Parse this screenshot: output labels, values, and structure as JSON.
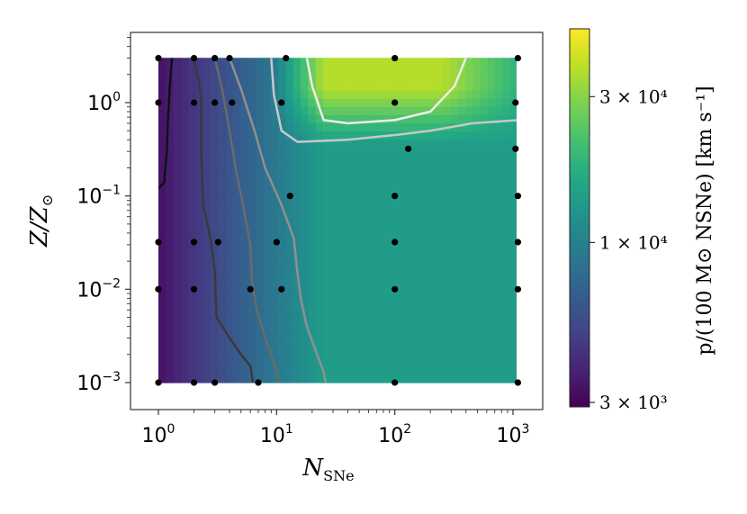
{
  "chart_data": {
    "type": "heatmap",
    "xlabel": "N",
    "xlabel_sub": "SNe",
    "ylabel": "Z/Z",
    "ylabel_sub": "⊙",
    "x_scale": "log",
    "y_scale": "log",
    "xlim": [
      0.62,
      1800
    ],
    "ylim": [
      0.00058,
      5.7
    ],
    "x_ticks": [
      {
        "value": 1,
        "base": "10",
        "exp": "0"
      },
      {
        "value": 10,
        "base": "10",
        "exp": "1"
      },
      {
        "value": 100,
        "base": "10",
        "exp": "2"
      },
      {
        "value": 1000,
        "base": "10",
        "exp": "3"
      }
    ],
    "y_ticks": [
      {
        "value": 0.001,
        "base": "10",
        "exp": "−3"
      },
      {
        "value": 0.01,
        "base": "10",
        "exp": "−2"
      },
      {
        "value": 0.1,
        "base": "10",
        "exp": "−1"
      },
      {
        "value": 1,
        "base": "10",
        "exp": "0"
      }
    ],
    "colormap": "viridis",
    "colorbar": {
      "scale": "log",
      "range": [
        2900,
        50000
      ],
      "ticks": [
        {
          "value": 3000,
          "label": "3 × 10³"
        },
        {
          "value": 10000,
          "label": "1 × 10⁴"
        },
        {
          "value": 30000,
          "label": "3 × 10⁴"
        }
      ],
      "label": "p/(100 M⊙ NSNe) [km s⁻¹]"
    },
    "sample_points": [
      [
        1,
        3
      ],
      [
        2,
        3
      ],
      [
        3,
        3
      ],
      [
        4,
        3
      ],
      [
        12,
        3
      ],
      [
        100,
        3
      ],
      [
        1100,
        3
      ],
      [
        1,
        1
      ],
      [
        2,
        1
      ],
      [
        3,
        1
      ],
      [
        4.2,
        1
      ],
      [
        11,
        1
      ],
      [
        100,
        1
      ],
      [
        1050,
        1
      ],
      [
        130,
        0.32
      ],
      [
        1050,
        0.32
      ],
      [
        13,
        0.1
      ],
      [
        100,
        0.1
      ],
      [
        1100,
        0.1
      ],
      [
        1,
        0.032
      ],
      [
        2,
        0.032
      ],
      [
        3.2,
        0.032
      ],
      [
        10,
        0.032
      ],
      [
        100,
        0.032
      ],
      [
        1100,
        0.032
      ],
      [
        1,
        0.01
      ],
      [
        2,
        0.01
      ],
      [
        6,
        0.01
      ],
      [
        11,
        0.01
      ],
      [
        100,
        0.01
      ],
      [
        1100,
        0.01
      ],
      [
        1,
        0.001
      ],
      [
        2,
        0.001
      ],
      [
        3,
        0.001
      ],
      [
        7,
        0.001
      ],
      [
        100,
        0.001
      ],
      [
        1100,
        0.001
      ]
    ],
    "contours": [
      {
        "level": 3500,
        "color": "#111111",
        "points": [
          [
            1.3,
            3
          ],
          [
            1.25,
            1.5
          ],
          [
            1.2,
            0.6
          ],
          [
            1.18,
            0.3
          ],
          [
            1.12,
            0.14
          ],
          [
            1,
            0.12
          ]
        ]
      },
      {
        "level": 4500,
        "color": "#3a3a3a",
        "points": [
          [
            2,
            3
          ],
          [
            2.3,
            1.2
          ],
          [
            2.3,
            0.3
          ],
          [
            2.4,
            0.08
          ],
          [
            2.8,
            0.032
          ],
          [
            3,
            0.015
          ],
          [
            3.1,
            0.005
          ],
          [
            4,
            0.003
          ],
          [
            5,
            0.002
          ],
          [
            6,
            0.0015
          ],
          [
            6.3,
            0.001
          ]
        ]
      },
      {
        "level": 6000,
        "color": "#6a6a6a",
        "points": [
          [
            3,
            3
          ],
          [
            3.5,
            1.3
          ],
          [
            4,
            0.5
          ],
          [
            4.5,
            0.2
          ],
          [
            5.2,
            0.08
          ],
          [
            6,
            0.03
          ],
          [
            6.2,
            0.012
          ],
          [
            6.8,
            0.006
          ],
          [
            8,
            0.003
          ],
          [
            9,
            0.002
          ],
          [
            10,
            0.0013
          ],
          [
            10.5,
            0.001
          ]
        ]
      },
      {
        "level": 8000,
        "color": "#909090",
        "points": [
          [
            4,
            3
          ],
          [
            5,
            1.4
          ],
          [
            6.5,
            0.5
          ],
          [
            8,
            0.2
          ],
          [
            11,
            0.08
          ],
          [
            14,
            0.035
          ],
          [
            15,
            0.015
          ],
          [
            16,
            0.008
          ],
          [
            18,
            0.004
          ],
          [
            22,
            0.002
          ],
          [
            25,
            0.0013
          ],
          [
            26,
            0.001
          ]
        ]
      },
      {
        "level": 20000,
        "color": "#c8c8c8",
        "points": [
          [
            9,
            3
          ],
          [
            9.5,
            1.2
          ],
          [
            11,
            0.5
          ],
          [
            15,
            0.38
          ],
          [
            40,
            0.4
          ],
          [
            100,
            0.45
          ],
          [
            200,
            0.5
          ],
          [
            450,
            0.6
          ],
          [
            1100,
            0.65
          ]
        ]
      },
      {
        "level": 30000,
        "color": "#eeeeee",
        "points": [
          [
            18,
            3
          ],
          [
            20,
            1.5
          ],
          [
            25,
            0.65
          ],
          [
            40,
            0.6
          ],
          [
            100,
            0.65
          ],
          [
            200,
            0.8
          ],
          [
            320,
            1.5
          ],
          [
            400,
            3
          ]
        ]
      }
    ]
  }
}
